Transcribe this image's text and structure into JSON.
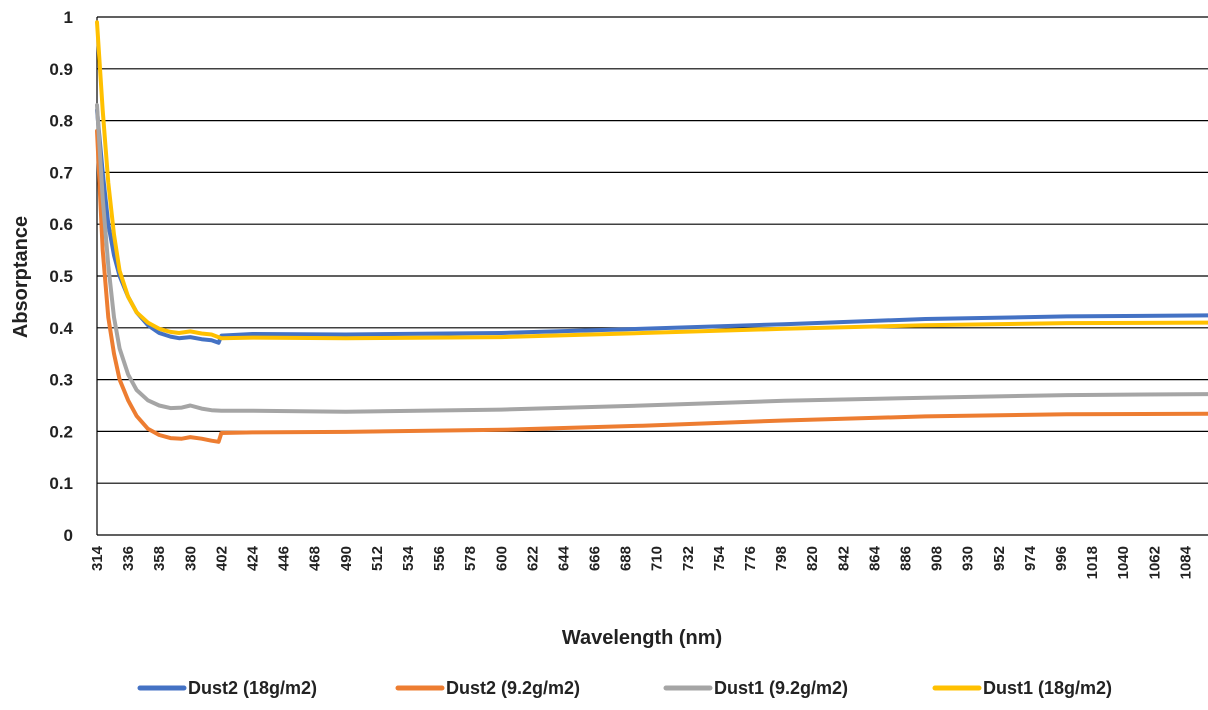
{
  "chart_data": {
    "type": "line",
    "title": "",
    "xlabel": "Wavelength (nm)",
    "ylabel": "Absorptance",
    "xlim": [
      314,
      1100
    ],
    "ylim": [
      0,
      1
    ],
    "yticks": [
      "0",
      "0.1",
      "0.2",
      "0.3",
      "0.4",
      "0.5",
      "0.6",
      "0.7",
      "0.8",
      "0.9",
      "1"
    ],
    "xticks": [
      "314",
      "336",
      "358",
      "380",
      "402",
      "424",
      "446",
      "468",
      "490",
      "512",
      "534",
      "556",
      "578",
      "600",
      "622",
      "644",
      "666",
      "688",
      "710",
      "732",
      "754",
      "776",
      "798",
      "820",
      "842",
      "864",
      "886",
      "908",
      "930",
      "952",
      "974",
      "996",
      "1018",
      "1040",
      "1062",
      "1084"
    ],
    "grid": "horizontal",
    "legend_position": "bottom",
    "series": [
      {
        "name": "Dust2 (18g/m2)",
        "color": "#4472C4",
        "points": [
          [
            314,
            0.82
          ],
          [
            318,
            0.7
          ],
          [
            322,
            0.6
          ],
          [
            326,
            0.54
          ],
          [
            330,
            0.5
          ],
          [
            336,
            0.46
          ],
          [
            342,
            0.43
          ],
          [
            350,
            0.405
          ],
          [
            358,
            0.39
          ],
          [
            366,
            0.383
          ],
          [
            372,
            0.38
          ],
          [
            380,
            0.382
          ],
          [
            388,
            0.378
          ],
          [
            395,
            0.376
          ],
          [
            400,
            0.371
          ],
          [
            402,
            0.385
          ],
          [
            424,
            0.388
          ],
          [
            490,
            0.387
          ],
          [
            600,
            0.39
          ],
          [
            700,
            0.398
          ],
          [
            800,
            0.407
          ],
          [
            900,
            0.417
          ],
          [
            1000,
            0.422
          ],
          [
            1100,
            0.424
          ]
        ]
      },
      {
        "name": "Dust2 (9.2g/m2)",
        "color": "#ED7D31",
        "points": [
          [
            314,
            0.78
          ],
          [
            318,
            0.55
          ],
          [
            322,
            0.42
          ],
          [
            326,
            0.35
          ],
          [
            330,
            0.3
          ],
          [
            336,
            0.26
          ],
          [
            342,
            0.23
          ],
          [
            350,
            0.205
          ],
          [
            358,
            0.193
          ],
          [
            366,
            0.187
          ],
          [
            374,
            0.186
          ],
          [
            380,
            0.189
          ],
          [
            388,
            0.186
          ],
          [
            395,
            0.182
          ],
          [
            400,
            0.18
          ],
          [
            402,
            0.197
          ],
          [
            424,
            0.198
          ],
          [
            490,
            0.199
          ],
          [
            600,
            0.203
          ],
          [
            700,
            0.211
          ],
          [
            800,
            0.221
          ],
          [
            900,
            0.229
          ],
          [
            1000,
            0.233
          ],
          [
            1100,
            0.234
          ]
        ]
      },
      {
        "name": "Dust1 (9.2g/m2)",
        "color": "#A5A5A5",
        "points": [
          [
            314,
            0.83
          ],
          [
            318,
            0.65
          ],
          [
            322,
            0.52
          ],
          [
            326,
            0.42
          ],
          [
            330,
            0.36
          ],
          [
            336,
            0.31
          ],
          [
            342,
            0.28
          ],
          [
            350,
            0.26
          ],
          [
            358,
            0.25
          ],
          [
            366,
            0.245
          ],
          [
            374,
            0.246
          ],
          [
            380,
            0.25
          ],
          [
            388,
            0.244
          ],
          [
            395,
            0.241
          ],
          [
            402,
            0.24
          ],
          [
            424,
            0.24
          ],
          [
            490,
            0.238
          ],
          [
            600,
            0.242
          ],
          [
            700,
            0.25
          ],
          [
            800,
            0.259
          ],
          [
            900,
            0.265
          ],
          [
            1000,
            0.27
          ],
          [
            1100,
            0.272
          ]
        ]
      },
      {
        "name": "Dust1 (18g/m2)",
        "color": "#FFC000",
        "points": [
          [
            314,
            0.99
          ],
          [
            318,
            0.82
          ],
          [
            322,
            0.68
          ],
          [
            326,
            0.58
          ],
          [
            330,
            0.51
          ],
          [
            336,
            0.46
          ],
          [
            342,
            0.43
          ],
          [
            350,
            0.41
          ],
          [
            358,
            0.398
          ],
          [
            366,
            0.392
          ],
          [
            372,
            0.39
          ],
          [
            380,
            0.393
          ],
          [
            388,
            0.389
          ],
          [
            395,
            0.387
          ],
          [
            402,
            0.38
          ],
          [
            424,
            0.381
          ],
          [
            490,
            0.38
          ],
          [
            600,
            0.382
          ],
          [
            700,
            0.39
          ],
          [
            800,
            0.398
          ],
          [
            900,
            0.405
          ],
          [
            1000,
            0.409
          ],
          [
            1100,
            0.41
          ]
        ]
      }
    ]
  }
}
